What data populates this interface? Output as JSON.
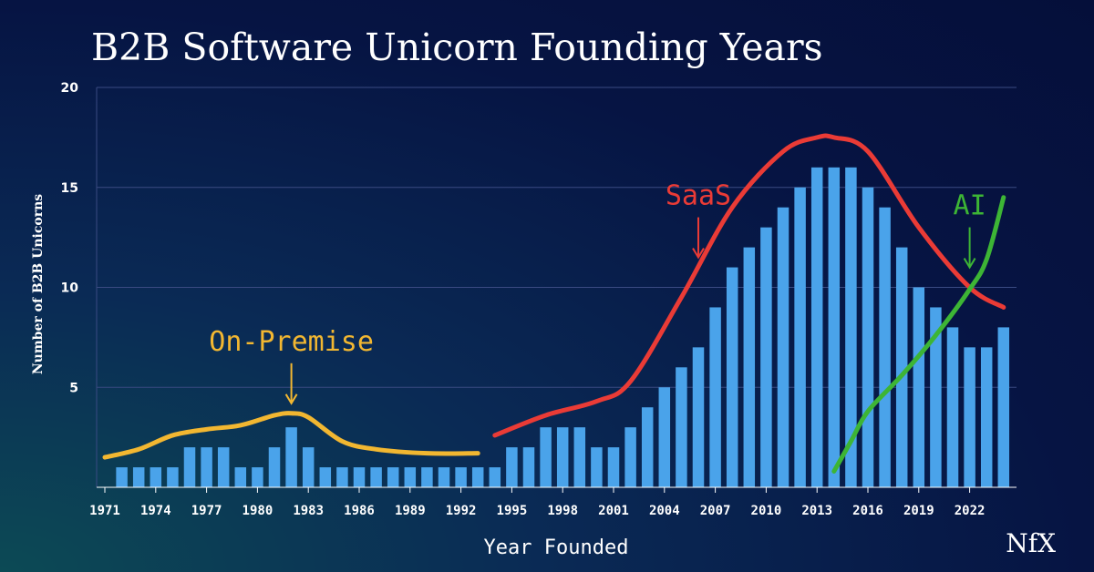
{
  "chart_data": {
    "type": "bar",
    "title": "B2B Software Unicorn Founding Years",
    "xlabel": "Year Founded",
    "ylabel": "Number of B2B Unicorns",
    "ylim": [
      0,
      20
    ],
    "yticks": [
      5,
      10,
      15,
      20
    ],
    "grid": true,
    "categories": [
      1972,
      1973,
      1974,
      1975,
      1976,
      1977,
      1978,
      1979,
      1980,
      1981,
      1982,
      1983,
      1984,
      1985,
      1986,
      1987,
      1988,
      1989,
      1990,
      1991,
      1992,
      1993,
      1994,
      1995,
      1996,
      1997,
      1998,
      1999,
      2000,
      2001,
      2002,
      2003,
      2004,
      2005,
      2006,
      2007,
      2008,
      2009,
      2010,
      2011,
      2012,
      2013,
      2014,
      2015,
      2016,
      2017,
      2018,
      2019,
      2020,
      2021,
      2022,
      2023,
      2024
    ],
    "values": [
      1,
      1,
      1,
      1,
      2,
      2,
      2,
      1,
      1,
      2,
      3,
      2,
      1,
      1,
      1,
      1,
      1,
      1,
      1,
      1,
      1,
      1,
      1,
      2,
      2,
      3,
      3,
      3,
      2,
      2,
      3,
      4,
      5,
      6,
      7,
      9,
      11,
      12,
      13,
      14,
      15,
      16,
      16,
      16,
      15,
      14,
      12,
      10,
      9,
      8,
      7,
      7,
      8
    ],
    "xtick_labels": [
      "1971",
      "1974",
      "1977",
      "1980",
      "1983",
      "1986",
      "1989",
      "1992",
      "1995",
      "1998",
      "2001",
      "2004",
      "2007",
      "2010",
      "2013",
      "2016",
      "2019",
      "2022"
    ],
    "series": [
      {
        "name": "On-Premise",
        "color": "#f2b731",
        "x": [
          1971,
          1973,
          1975,
          1977,
          1979,
          1981,
          1982,
          1983,
          1985,
          1987,
          1990,
          1993
        ],
        "y": [
          1.5,
          1.9,
          2.6,
          2.9,
          3.1,
          3.6,
          3.7,
          3.5,
          2.3,
          1.9,
          1.7,
          1.7
        ]
      },
      {
        "name": "SaaS",
        "color": "#ea3b36",
        "x": [
          1994,
          1997,
          2000,
          2002,
          2005,
          2008,
          2011,
          2013,
          2014,
          2016,
          2019,
          2022,
          2024
        ],
        "y": [
          2.6,
          3.6,
          4.3,
          5.3,
          9.5,
          14.0,
          16.8,
          17.5,
          17.5,
          16.8,
          13.0,
          10.0,
          9.0
        ]
      },
      {
        "name": "AI",
        "color": "#3db535",
        "x": [
          2014,
          2015,
          2016,
          2018,
          2020,
          2022,
          2023,
          2024
        ],
        "y": [
          0.8,
          2.3,
          3.8,
          5.6,
          7.6,
          9.9,
          11.4,
          14.5
        ]
      }
    ],
    "annotations": [
      {
        "text": "On-Premise",
        "arrow_to": [
          1982,
          4.2
        ]
      },
      {
        "text": "SaaS",
        "arrow_to": [
          2006,
          11.5
        ]
      },
      {
        "text": "AI",
        "arrow_to": [
          2022,
          11.0
        ]
      }
    ]
  },
  "brand": {
    "logo": "NfX"
  }
}
